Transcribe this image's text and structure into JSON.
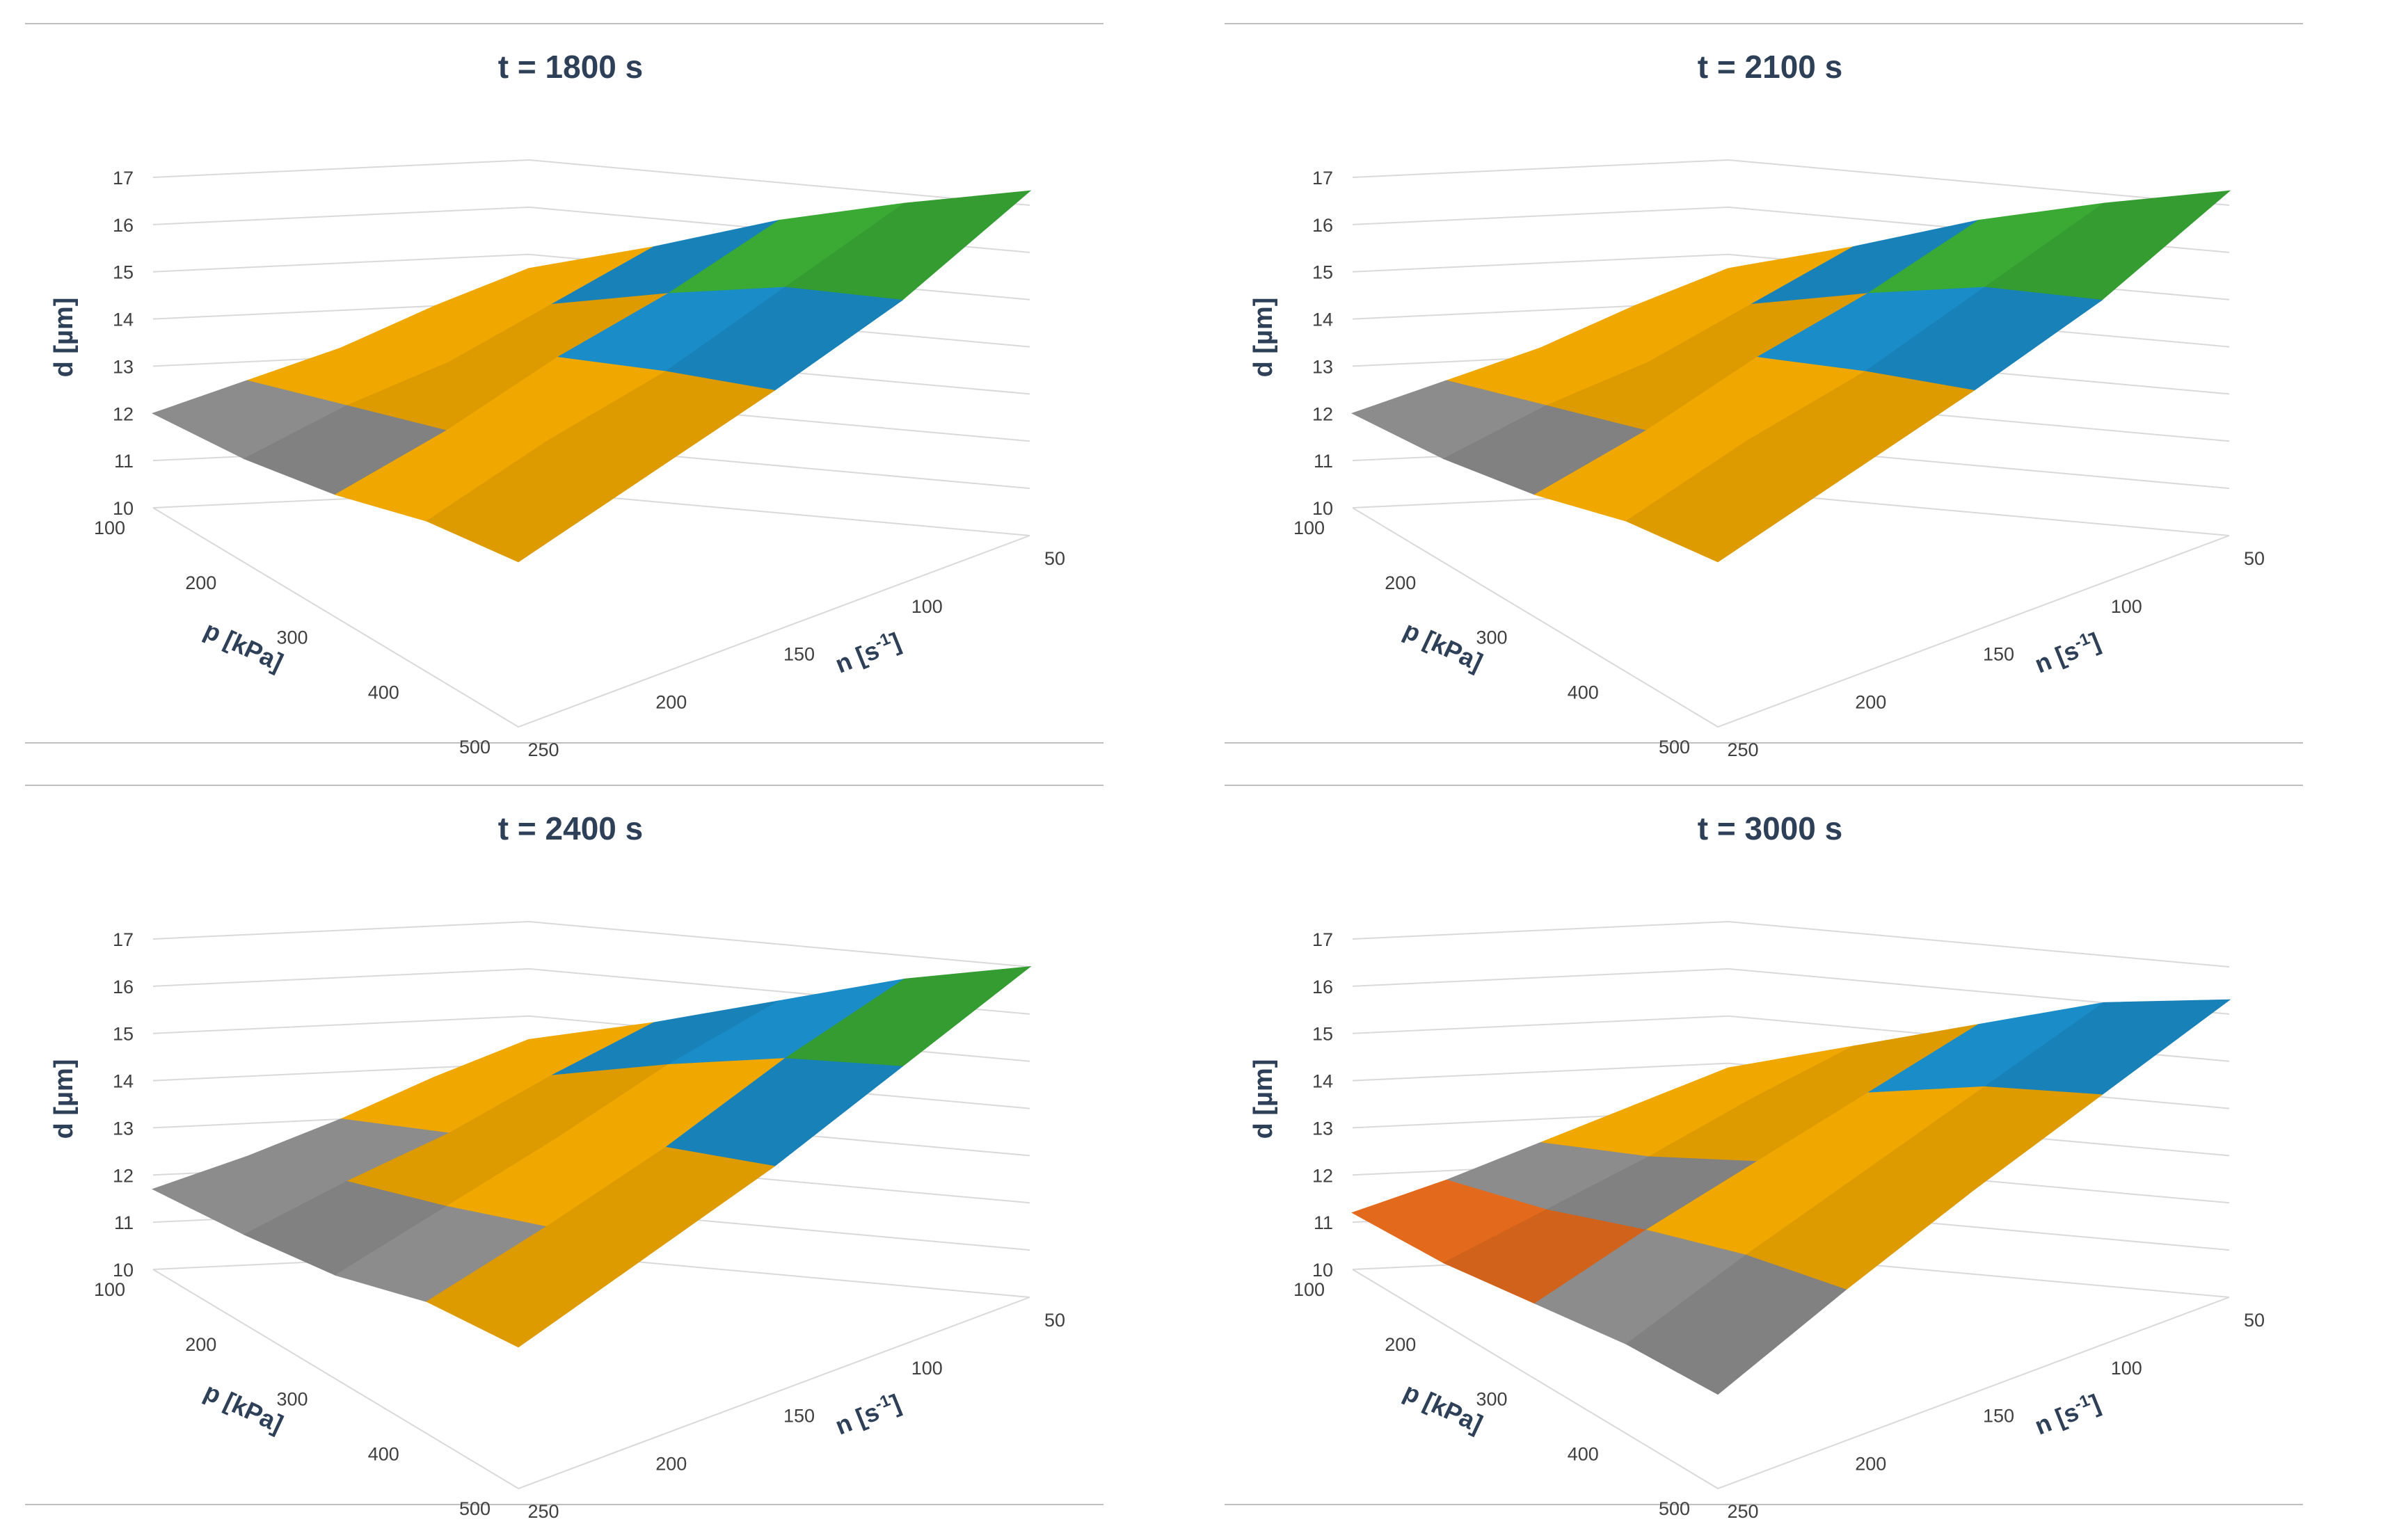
{
  "palette": {
    "band_10_11": "#e36a1d",
    "band_11_12": "#e36a1d",
    "band_12_13": "#8c8c8c",
    "band_13_14": "#f0a800",
    "band_14_15": "#f0a800",
    "band_15_16": "#1a8cc8",
    "band_16_17": "#3aaa35",
    "band_17_18": "#1f3f8f",
    "axis_text": "#404040",
    "title_text": "#2e4057",
    "grid": "#d9d9d9",
    "frame": "#bfbfbf"
  },
  "chart_data": [
    {
      "type": "surface",
      "title": "t = 1800 s",
      "zlabel": "d [µm]",
      "xlabel": "p [kPa]",
      "ylabel_base": "n [s",
      "ylabel_sup": "-1",
      "ylabel_end": "]",
      "x_ticks": [
        "100",
        "200",
        "300",
        "400",
        "500"
      ],
      "y_ticks": [
        "50",
        "100",
        "150",
        "200",
        "250"
      ],
      "z_ticks": [
        "10",
        "11",
        "12",
        "13",
        "14",
        "15",
        "16",
        "17"
      ],
      "x": [
        100,
        200,
        300,
        400,
        500
      ],
      "y": [
        50,
        100,
        150,
        200,
        250
      ],
      "zlim": [
        10,
        17
      ],
      "z": [
        [
          14.7,
          15.4,
          16.2,
          16.8,
          17.3
        ],
        [
          14.0,
          14.5,
          15.2,
          15.8,
          16.0
        ],
        [
          13.2,
          13.6,
          14.4,
          14.8,
          15.1
        ],
        [
          12.6,
          13.0,
          13.4,
          14.1,
          14.3
        ],
        [
          12.0,
          12.2,
          12.6,
          13.2,
          13.5
        ]
      ]
    },
    {
      "type": "surface",
      "title": "t = 2100 s",
      "zlabel": "d [µm]",
      "xlabel": "p [kPa]",
      "ylabel_base": "n [s",
      "ylabel_sup": "-1",
      "ylabel_end": "]",
      "x_ticks": [
        "100",
        "200",
        "300",
        "400",
        "500"
      ],
      "y_ticks": [
        "50",
        "100",
        "150",
        "200",
        "250"
      ],
      "z_ticks": [
        "10",
        "11",
        "12",
        "13",
        "14",
        "15",
        "16",
        "17"
      ],
      "x": [
        100,
        200,
        300,
        400,
        500
      ],
      "y": [
        50,
        100,
        150,
        200,
        250
      ],
      "zlim": [
        10,
        17
      ],
      "z": [
        [
          14.7,
          15.4,
          16.2,
          16.8,
          17.3
        ],
        [
          14.0,
          14.5,
          15.2,
          15.8,
          16.0
        ],
        [
          13.2,
          13.6,
          14.4,
          14.8,
          15.1
        ],
        [
          12.6,
          13.0,
          13.4,
          14.1,
          14.3
        ],
        [
          12.0,
          12.2,
          12.6,
          13.2,
          13.5
        ]
      ]
    },
    {
      "type": "surface",
      "title": "t = 2400 s",
      "zlabel": "d [µm]",
      "xlabel": "p [kPa]",
      "ylabel_base": "n [s",
      "ylabel_sup": "-1",
      "ylabel_end": "]",
      "x_ticks": [
        "100",
        "200",
        "300",
        "400",
        "500"
      ],
      "y_ticks": [
        "50",
        "100",
        "150",
        "200",
        "250"
      ],
      "z_ticks": [
        "10",
        "11",
        "12",
        "13",
        "14",
        "15",
        "16",
        "17"
      ],
      "x": [
        100,
        200,
        300,
        400,
        500
      ],
      "y": [
        50,
        100,
        150,
        200,
        250
      ],
      "zlim": [
        10,
        17
      ],
      "z": [
        [
          14.5,
          15.1,
          15.8,
          16.5,
          17.0
        ],
        [
          13.8,
          14.3,
          15.0,
          15.6,
          15.9
        ],
        [
          13.0,
          13.4,
          14.0,
          14.5,
          14.8
        ],
        [
          12.3,
          12.7,
          13.1,
          13.6,
          13.9
        ],
        [
          11.7,
          11.9,
          12.2,
          12.8,
          13.0
        ]
      ]
    },
    {
      "type": "surface",
      "title": "t = 3000 s",
      "zlabel": "d [µm]",
      "xlabel": "p [kPa]",
      "ylabel_base": "n [s",
      "ylabel_sup": "-1",
      "ylabel_end": "]",
      "x_ticks": [
        "100",
        "200",
        "300",
        "400",
        "500"
      ],
      "y_ticks": [
        "50",
        "100",
        "150",
        "200",
        "250"
      ],
      "z_ticks": [
        "10",
        "11",
        "12",
        "13",
        "14",
        "15",
        "16",
        "17"
      ],
      "x": [
        100,
        200,
        300,
        400,
        500
      ],
      "y": [
        50,
        100,
        150,
        200,
        250
      ],
      "zlim": [
        10,
        17
      ],
      "z": [
        [
          13.9,
          14.6,
          15.3,
          16.0,
          16.3
        ],
        [
          13.2,
          13.8,
          14.4,
          15.0,
          15.3
        ],
        [
          12.5,
          12.9,
          13.5,
          14.0,
          14.3
        ],
        [
          11.8,
          12.1,
          12.6,
          13.0,
          13.2
        ],
        [
          11.2,
          11.3,
          11.6,
          11.9,
          12.0
        ]
      ]
    }
  ]
}
